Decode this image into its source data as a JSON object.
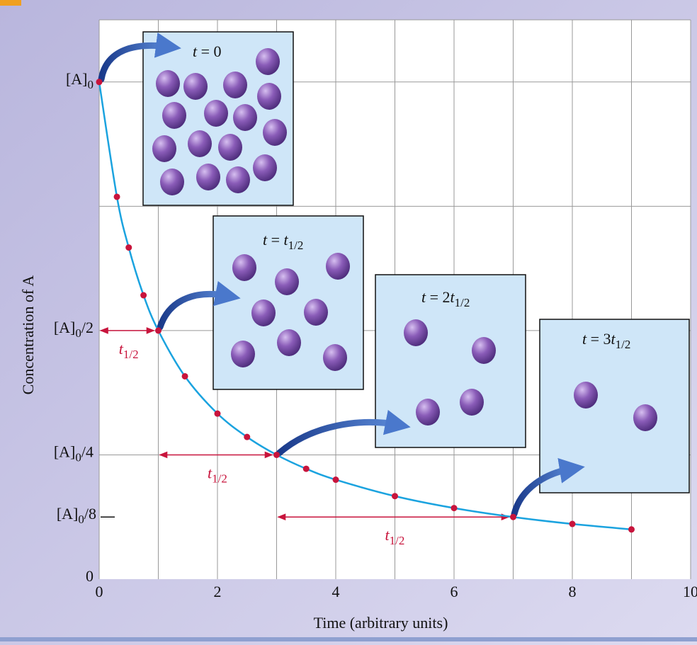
{
  "chart_data": {
    "type": "line",
    "x_label": "Time (arbitrary units)",
    "y_label": "Concentration of A",
    "x": [
      0,
      0.3,
      0.5,
      0.75,
      1,
      1.45,
      2,
      2.5,
      3,
      3.5,
      4,
      5,
      6,
      7,
      8,
      9
    ],
    "series": [
      {
        "color": "#1ba3df",
        "marker_color": "#c8143c",
        "values": [
          1,
          0.769,
          0.667,
          0.571,
          0.5,
          0.408,
          0.333,
          0.286,
          0.25,
          0.222,
          0.2,
          0.167,
          0.143,
          0.125,
          0.111,
          0.1
        ]
      }
    ],
    "xlim": [
      0,
      10
    ],
    "ylim": [
      0,
      1.125
    ],
    "xticks": [
      0,
      2,
      4,
      6,
      8,
      10
    ],
    "yticks": [
      0,
      {
        "value": 0.125,
        "label": "[A]0/8"
      },
      {
        "value": 0.25,
        "label": "[A]0/4"
      },
      {
        "value": 0.5,
        "label": "[A]0/2"
      },
      {
        "value": 1,
        "label": "[A]0"
      }
    ],
    "xgrid": [
      1,
      2,
      3,
      4,
      5,
      6,
      7,
      8,
      9,
      10
    ],
    "ygrid": [
      0.25,
      0.5,
      0.75,
      1
    ],
    "half_life_arrows": [
      {
        "from": 0,
        "to": 1,
        "level": 0.5,
        "label": "t1/2"
      },
      {
        "from": 1,
        "to": 3,
        "level": 0.25,
        "label": "t1/2"
      },
      {
        "from": 3,
        "to": 7,
        "level": 0.125,
        "label": "t1/2"
      }
    ],
    "insets": [
      {
        "label": "t = 0",
        "particles": 16
      },
      {
        "label": "t = t1/2",
        "particles": 8
      },
      {
        "label": "t = 2t1/2",
        "particles": 4
      },
      {
        "label": "t = 3t1/2",
        "particles": 2
      }
    ]
  }
}
